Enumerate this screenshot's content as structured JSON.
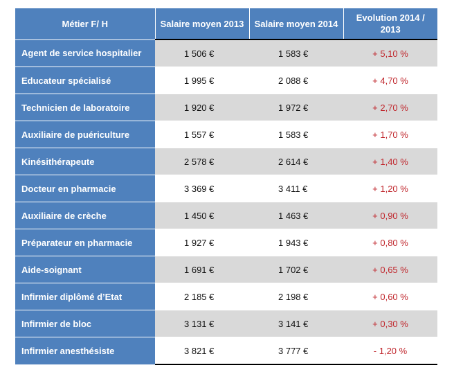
{
  "table": {
    "headers": [
      "Métier F/ H",
      "Salaire moyen 2013",
      "Salaire moyen 2014",
      "Evolution 2014 / 2013"
    ],
    "rows": [
      {
        "metier": "Agent de service hospitalier",
        "s2013": "1 506 €",
        "s2014": "1 583 €",
        "evolution": "+ 5,10 %"
      },
      {
        "metier": "Educateur spécialisé",
        "s2013": "1 995 €",
        "s2014": "2 088 €",
        "evolution": "+ 4,70 %"
      },
      {
        "metier": "Technicien de laboratoire",
        "s2013": "1 920 €",
        "s2014": "1 972 €",
        "evolution": "+ 2,70 %"
      },
      {
        "metier": "Auxiliaire de puériculture",
        "s2013": "1 557 €",
        "s2014": "1 583 €",
        "evolution": "+ 1,70 %"
      },
      {
        "metier": "Kinésithérapeute",
        "s2013": "2 578 €",
        "s2014": "2 614 €",
        "evolution": "+ 1,40 %"
      },
      {
        "metier": "Docteur en pharmacie",
        "s2013": "3 369 €",
        "s2014": "3 411 €",
        "evolution": "+ 1,20 %"
      },
      {
        "metier": "Auxiliaire de crèche",
        "s2013": "1 450 €",
        "s2014": "1 463 €",
        "evolution": "+ 0,90 %"
      },
      {
        "metier": "Préparateur en pharmacie",
        "s2013": "1 927 €",
        "s2014": "1 943 €",
        "evolution": "+ 0,80 %"
      },
      {
        "metier": "Aide-soignant",
        "s2013": "1 691 €",
        "s2014": "1 702 €",
        "evolution": "+ 0,65 %"
      },
      {
        "metier": "Infirmier diplômé d’Etat",
        "s2013": "2 185 €",
        "s2014": "2 198 €",
        "evolution": "+ 0,60 %"
      },
      {
        "metier": "Infirmier de bloc",
        "s2013": "3 131 €",
        "s2014": "3 141 €",
        "evolution": "+ 0,30 %"
      },
      {
        "metier": "Infirmier anesthésiste",
        "s2013": "3 821 €",
        "s2014": "3 777 €",
        "evolution": "- 1,20 %"
      }
    ]
  },
  "colors": {
    "header_bg": "#4f81bd",
    "header_text": "#ffffff",
    "band": "#d9d9d9",
    "evolution_text": "#c0272d"
  }
}
